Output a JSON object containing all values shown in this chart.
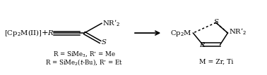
{
  "bg_color": "#ffffff",
  "text_color": "#000000",
  "figsize": [
    3.78,
    1.07
  ],
  "dpi": 100,
  "fs_main": 7.2,
  "fs_small": 6.2,
  "reactant1": "[Cp$_2$M(II)]",
  "plus": "+",
  "alkyne_R": "R",
  "alkyne_NR2": "NR’$_2$",
  "alkyne_S": "S",
  "arrow_label": "",
  "product_R": "R",
  "product_Cp2M": "Cp$_2$M",
  "product_S": "S",
  "product_NR2": "NR’$_2$",
  "product_label": "M = Zr, Ti",
  "note1": "R = SiMe$_3$, R’ = Me",
  "note2": "R = SiMe$_2$($t$-Bu), R’ = Et"
}
